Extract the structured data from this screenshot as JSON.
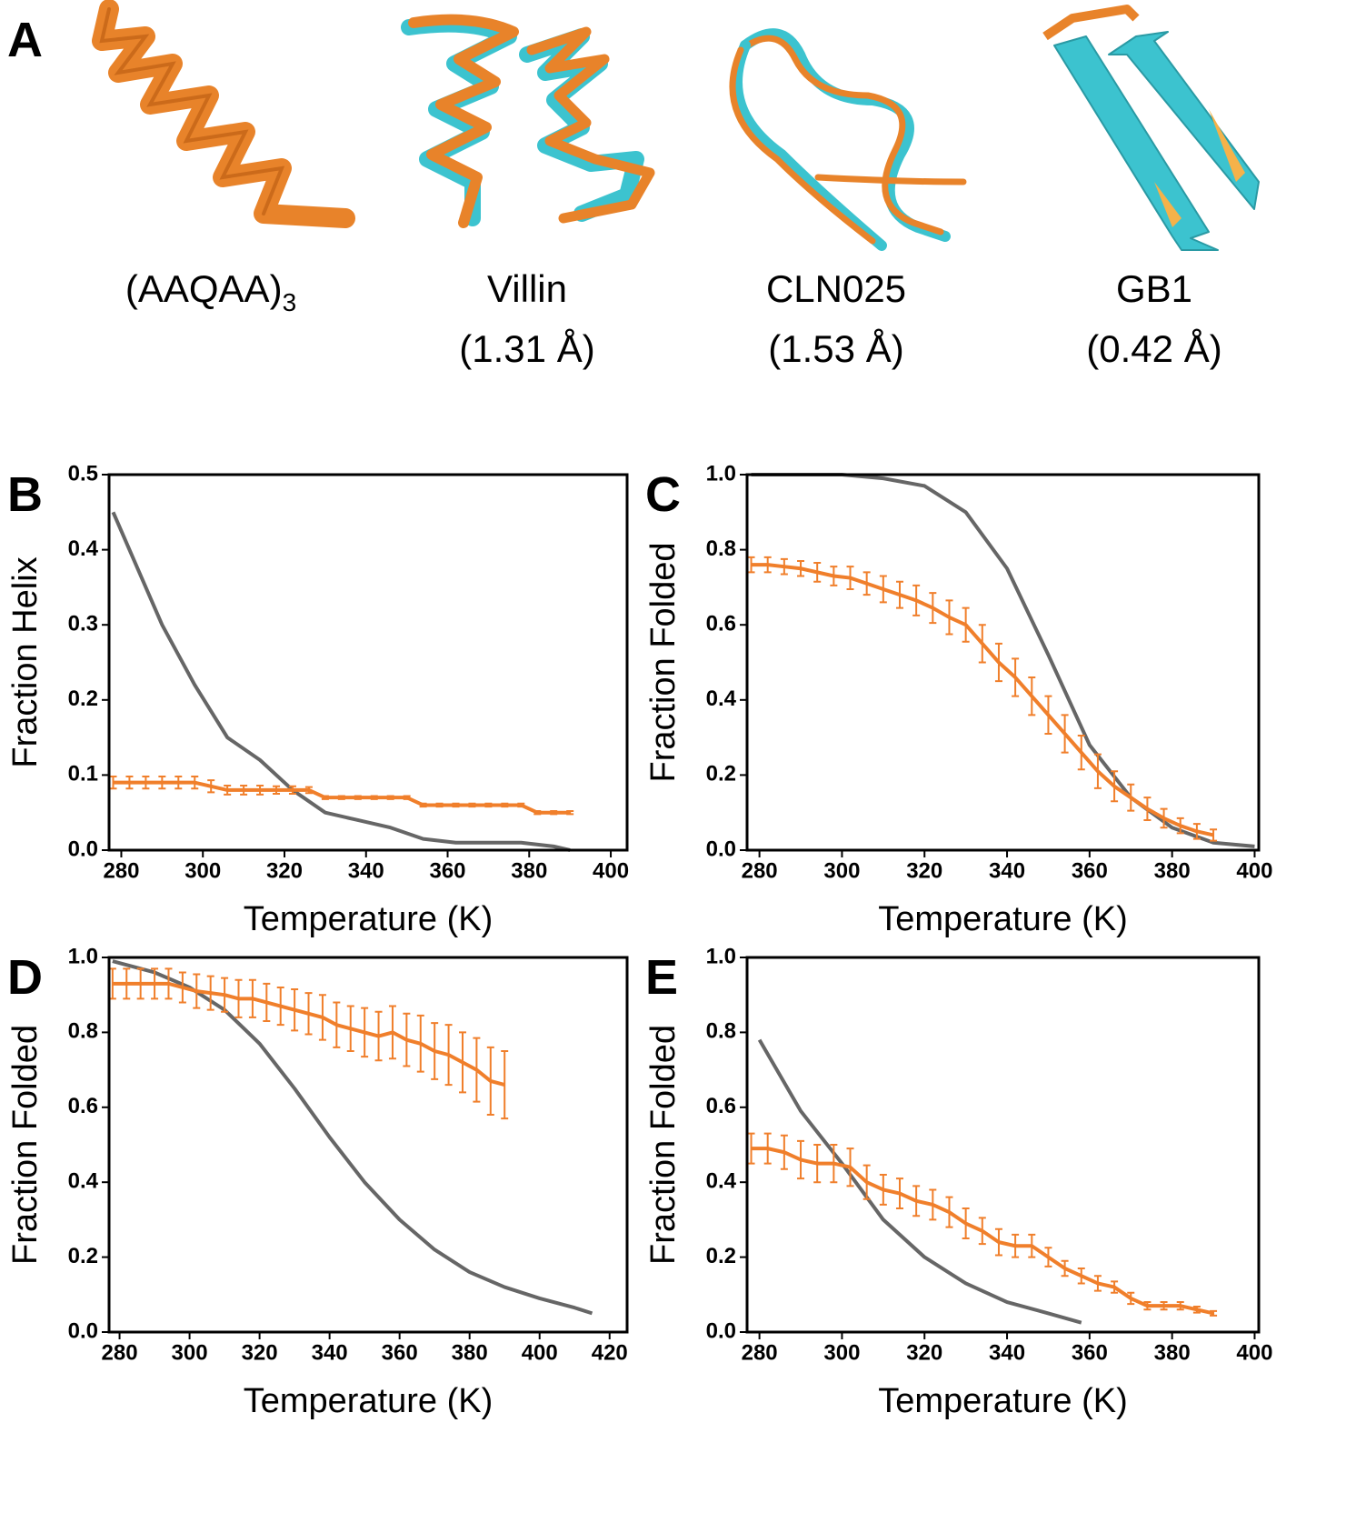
{
  "panel_a": {
    "label": "A",
    "structures": [
      {
        "name": "(AAQAA)",
        "subscript": "3"
      },
      {
        "name": "Villin",
        "rmsd": "(1.31 Å)"
      },
      {
        "name": "CLN025",
        "rmsd": "(1.53 Å)"
      },
      {
        "name": "GB1",
        "rmsd": "(0.42 Å)"
      }
    ]
  },
  "chart_data": [
    {
      "type": "line",
      "panel": "B",
      "xlabel": "Temperature (K)",
      "ylabel": "Fraction Helix",
      "xlim": [
        277,
        404
      ],
      "ylim": [
        0,
        0.5
      ],
      "xticks": [
        280,
        300,
        320,
        340,
        360,
        380,
        400
      ],
      "yticks": [
        {
          "value": 0,
          "label": "0.0"
        },
        0.1,
        0.2,
        0.3,
        0.4,
        0.5
      ],
      "series": [
        {
          "color": "#666666",
          "x": [
            278,
            290,
            298,
            306,
            314,
            322,
            330,
            338,
            346,
            354,
            362,
            370,
            378,
            386,
            390
          ],
          "values": [
            0.45,
            0.3,
            0.22,
            0.15,
            0.12,
            0.08,
            0.05,
            0.04,
            0.03,
            0.015,
            0.01,
            0.01,
            0.01,
            0.005,
            0.0
          ]
        },
        {
          "color": "#f07f2b",
          "x": [
            278,
            282,
            286,
            290,
            294,
            298,
            302,
            306,
            310,
            314,
            318,
            322,
            326,
            330,
            334,
            338,
            342,
            346,
            350,
            354,
            358,
            362,
            366,
            370,
            374,
            378,
            382,
            386,
            390
          ],
          "values": [
            0.09,
            0.09,
            0.09,
            0.09,
            0.09,
            0.09,
            0.085,
            0.08,
            0.08,
            0.08,
            0.08,
            0.08,
            0.08,
            0.07,
            0.07,
            0.07,
            0.07,
            0.07,
            0.07,
            0.06,
            0.06,
            0.06,
            0.06,
            0.06,
            0.06,
            0.06,
            0.05,
            0.05,
            0.05
          ],
          "errors": [
            0.008,
            0.008,
            0.008,
            0.008,
            0.008,
            0.008,
            0.008,
            0.006,
            0.006,
            0.006,
            0.005,
            0.005,
            0.004,
            0.002,
            0.002,
            0.002,
            0.002,
            0.002,
            0.002,
            0.002,
            0.002,
            0.002,
            0.002,
            0.002,
            0.002,
            0.002,
            0.002,
            0.002,
            0.002
          ]
        }
      ]
    },
    {
      "type": "line",
      "panel": "C",
      "xlabel": "Temperature (K)",
      "ylabel": "Fraction Folded",
      "xlim": [
        277,
        401
      ],
      "ylim": [
        0,
        1
      ],
      "xticks": [
        280,
        300,
        320,
        340,
        360,
        380,
        400
      ],
      "yticks": [
        {
          "value": 0,
          "label": "0.0"
        },
        0.2,
        0.4,
        0.6,
        0.8,
        {
          "value": 1,
          "label": "1.0"
        }
      ],
      "series": [
        {
          "color": "#666666",
          "x": [
            278,
            300,
            310,
            320,
            330,
            340,
            350,
            360,
            370,
            380,
            390,
            400
          ],
          "values": [
            1.0,
            1.0,
            0.99,
            0.97,
            0.9,
            0.75,
            0.52,
            0.28,
            0.14,
            0.06,
            0.02,
            0.01
          ]
        },
        {
          "color": "#f07f2b",
          "x": [
            278,
            282,
            286,
            290,
            294,
            298,
            302,
            306,
            310,
            314,
            318,
            322,
            326,
            330,
            334,
            338,
            342,
            346,
            350,
            354,
            358,
            362,
            366,
            370,
            374,
            378,
            382,
            386,
            390
          ],
          "values": [
            0.76,
            0.76,
            0.755,
            0.75,
            0.74,
            0.73,
            0.725,
            0.71,
            0.695,
            0.68,
            0.665,
            0.645,
            0.62,
            0.6,
            0.55,
            0.5,
            0.46,
            0.41,
            0.36,
            0.31,
            0.26,
            0.21,
            0.17,
            0.14,
            0.11,
            0.085,
            0.065,
            0.05,
            0.04
          ],
          "errors": [
            0.02,
            0.02,
            0.02,
            0.02,
            0.025,
            0.025,
            0.03,
            0.03,
            0.035,
            0.035,
            0.04,
            0.04,
            0.045,
            0.045,
            0.05,
            0.05,
            0.05,
            0.05,
            0.05,
            0.05,
            0.045,
            0.045,
            0.04,
            0.035,
            0.03,
            0.025,
            0.02,
            0.02,
            0.015
          ]
        }
      ]
    },
    {
      "type": "line",
      "panel": "D",
      "xlabel": "Temperature (K)",
      "ylabel": "Fraction Folded",
      "xlim": [
        277,
        425
      ],
      "ylim": [
        0,
        1
      ],
      "xticks": [
        280,
        300,
        320,
        340,
        360,
        380,
        400,
        420
      ],
      "yticks": [
        {
          "value": 0,
          "label": "0.0"
        },
        0.2,
        0.4,
        0.6,
        0.8,
        {
          "value": 1,
          "label": "1.0"
        }
      ],
      "series": [
        {
          "color": "#666666",
          "x": [
            278,
            290,
            300,
            310,
            320,
            330,
            340,
            350,
            360,
            370,
            380,
            390,
            400,
            410,
            415
          ],
          "values": [
            0.99,
            0.96,
            0.92,
            0.86,
            0.77,
            0.65,
            0.52,
            0.4,
            0.3,
            0.22,
            0.16,
            0.12,
            0.09,
            0.065,
            0.05
          ]
        },
        {
          "color": "#f07f2b",
          "x": [
            278,
            282,
            286,
            290,
            294,
            298,
            302,
            306,
            310,
            314,
            318,
            322,
            326,
            330,
            334,
            338,
            342,
            346,
            350,
            354,
            358,
            362,
            366,
            370,
            374,
            378,
            382,
            386,
            390
          ],
          "values": [
            0.93,
            0.93,
            0.93,
            0.93,
            0.93,
            0.92,
            0.91,
            0.905,
            0.9,
            0.89,
            0.89,
            0.88,
            0.87,
            0.86,
            0.85,
            0.84,
            0.82,
            0.81,
            0.8,
            0.79,
            0.8,
            0.78,
            0.77,
            0.75,
            0.74,
            0.72,
            0.7,
            0.67,
            0.66
          ],
          "errors": [
            0.04,
            0.04,
            0.04,
            0.04,
            0.04,
            0.04,
            0.045,
            0.045,
            0.045,
            0.05,
            0.05,
            0.05,
            0.05,
            0.055,
            0.055,
            0.06,
            0.06,
            0.06,
            0.065,
            0.065,
            0.07,
            0.07,
            0.075,
            0.075,
            0.08,
            0.08,
            0.085,
            0.09,
            0.09
          ]
        }
      ]
    },
    {
      "type": "line",
      "panel": "E",
      "xlabel": "Temperature (K)",
      "ylabel": "Fraction Folded",
      "xlim": [
        277,
        401
      ],
      "ylim": [
        0,
        1
      ],
      "xticks": [
        280,
        300,
        320,
        340,
        360,
        380,
        400
      ],
      "yticks": [
        {
          "value": 0,
          "label": "0.0"
        },
        0.2,
        0.4,
        0.6,
        0.8,
        {
          "value": 1,
          "label": "1.0"
        }
      ],
      "series": [
        {
          "color": "#666666",
          "x": [
            280,
            290,
            300,
            310,
            320,
            330,
            340,
            350,
            358
          ],
          "values": [
            0.78,
            0.59,
            0.45,
            0.3,
            0.2,
            0.13,
            0.08,
            0.05,
            0.025
          ]
        },
        {
          "color": "#f07f2b",
          "x": [
            278,
            282,
            286,
            290,
            294,
            298,
            302,
            306,
            310,
            314,
            318,
            322,
            326,
            330,
            334,
            338,
            342,
            346,
            350,
            354,
            358,
            362,
            366,
            370,
            374,
            378,
            382,
            386,
            390
          ],
          "values": [
            0.49,
            0.49,
            0.48,
            0.46,
            0.45,
            0.45,
            0.44,
            0.4,
            0.38,
            0.37,
            0.35,
            0.34,
            0.32,
            0.29,
            0.27,
            0.24,
            0.23,
            0.23,
            0.2,
            0.17,
            0.15,
            0.13,
            0.12,
            0.09,
            0.07,
            0.07,
            0.07,
            0.06,
            0.05
          ],
          "errors": [
            0.04,
            0.04,
            0.045,
            0.05,
            0.05,
            0.05,
            0.05,
            0.045,
            0.04,
            0.04,
            0.04,
            0.04,
            0.04,
            0.04,
            0.035,
            0.035,
            0.03,
            0.03,
            0.025,
            0.02,
            0.02,
            0.02,
            0.015,
            0.015,
            0.01,
            0.01,
            0.01,
            0.008,
            0.006
          ]
        }
      ]
    }
  ]
}
